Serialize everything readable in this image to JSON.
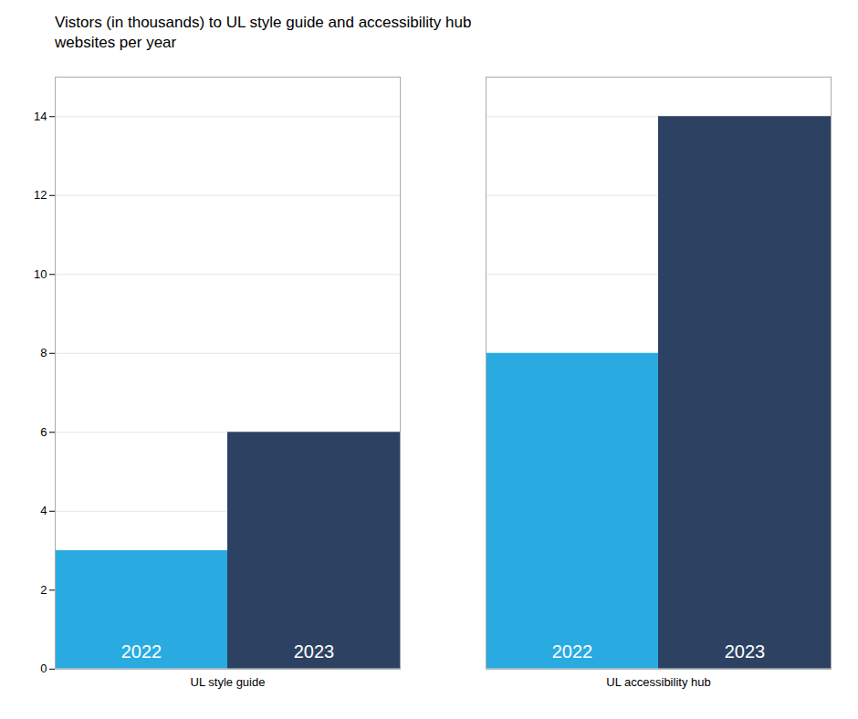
{
  "chart_data": {
    "type": "bar",
    "title": "Vistors (in thousands) to UL style guide and accessibility hub\nwebsites per year",
    "categories": [
      "UL style guide",
      "UL accessibility hub"
    ],
    "series": [
      {
        "name": "2022",
        "color": "#29ABE2",
        "values": [
          3,
          8
        ]
      },
      {
        "name": "2023",
        "color": "#2D4263",
        "values": [
          6,
          14
        ]
      }
    ],
    "ylim": [
      0,
      15
    ],
    "yticks": [
      0,
      2,
      4,
      6,
      8,
      10,
      12,
      14
    ],
    "grid": true
  }
}
